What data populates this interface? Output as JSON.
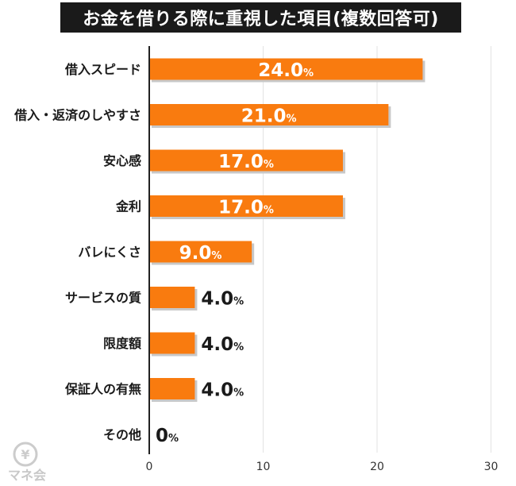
{
  "chart_data": {
    "type": "bar",
    "orientation": "horizontal",
    "title": "お金を借りる際に重視した項目(複数回答可)",
    "categories": [
      "借入スピード",
      "借入・返済のしやすさ",
      "安心感",
      "金利",
      "バレにくさ",
      "サービスの質",
      "限度額",
      "保証人の有無",
      "その他"
    ],
    "values": [
      24.0,
      21.0,
      17.0,
      17.0,
      9.0,
      4.0,
      4.0,
      4.0,
      0
    ],
    "value_labels": [
      "24.0",
      "21.0",
      "17.0",
      "17.0",
      "9.0",
      "4.0",
      "4.0",
      "4.0",
      "0"
    ],
    "unit": "%",
    "xlim": [
      0,
      30
    ],
    "xticks": [
      0,
      10,
      20,
      30
    ],
    "xtick_labels": [
      "0",
      "10",
      "20",
      "30"
    ],
    "grid": true,
    "bar_color": "#f97b0f",
    "shadow_color": "#c8c8c8"
  },
  "logo": {
    "text": "マネ会",
    "icon": "yen-coin-icon",
    "color": "#c8c8c8"
  }
}
